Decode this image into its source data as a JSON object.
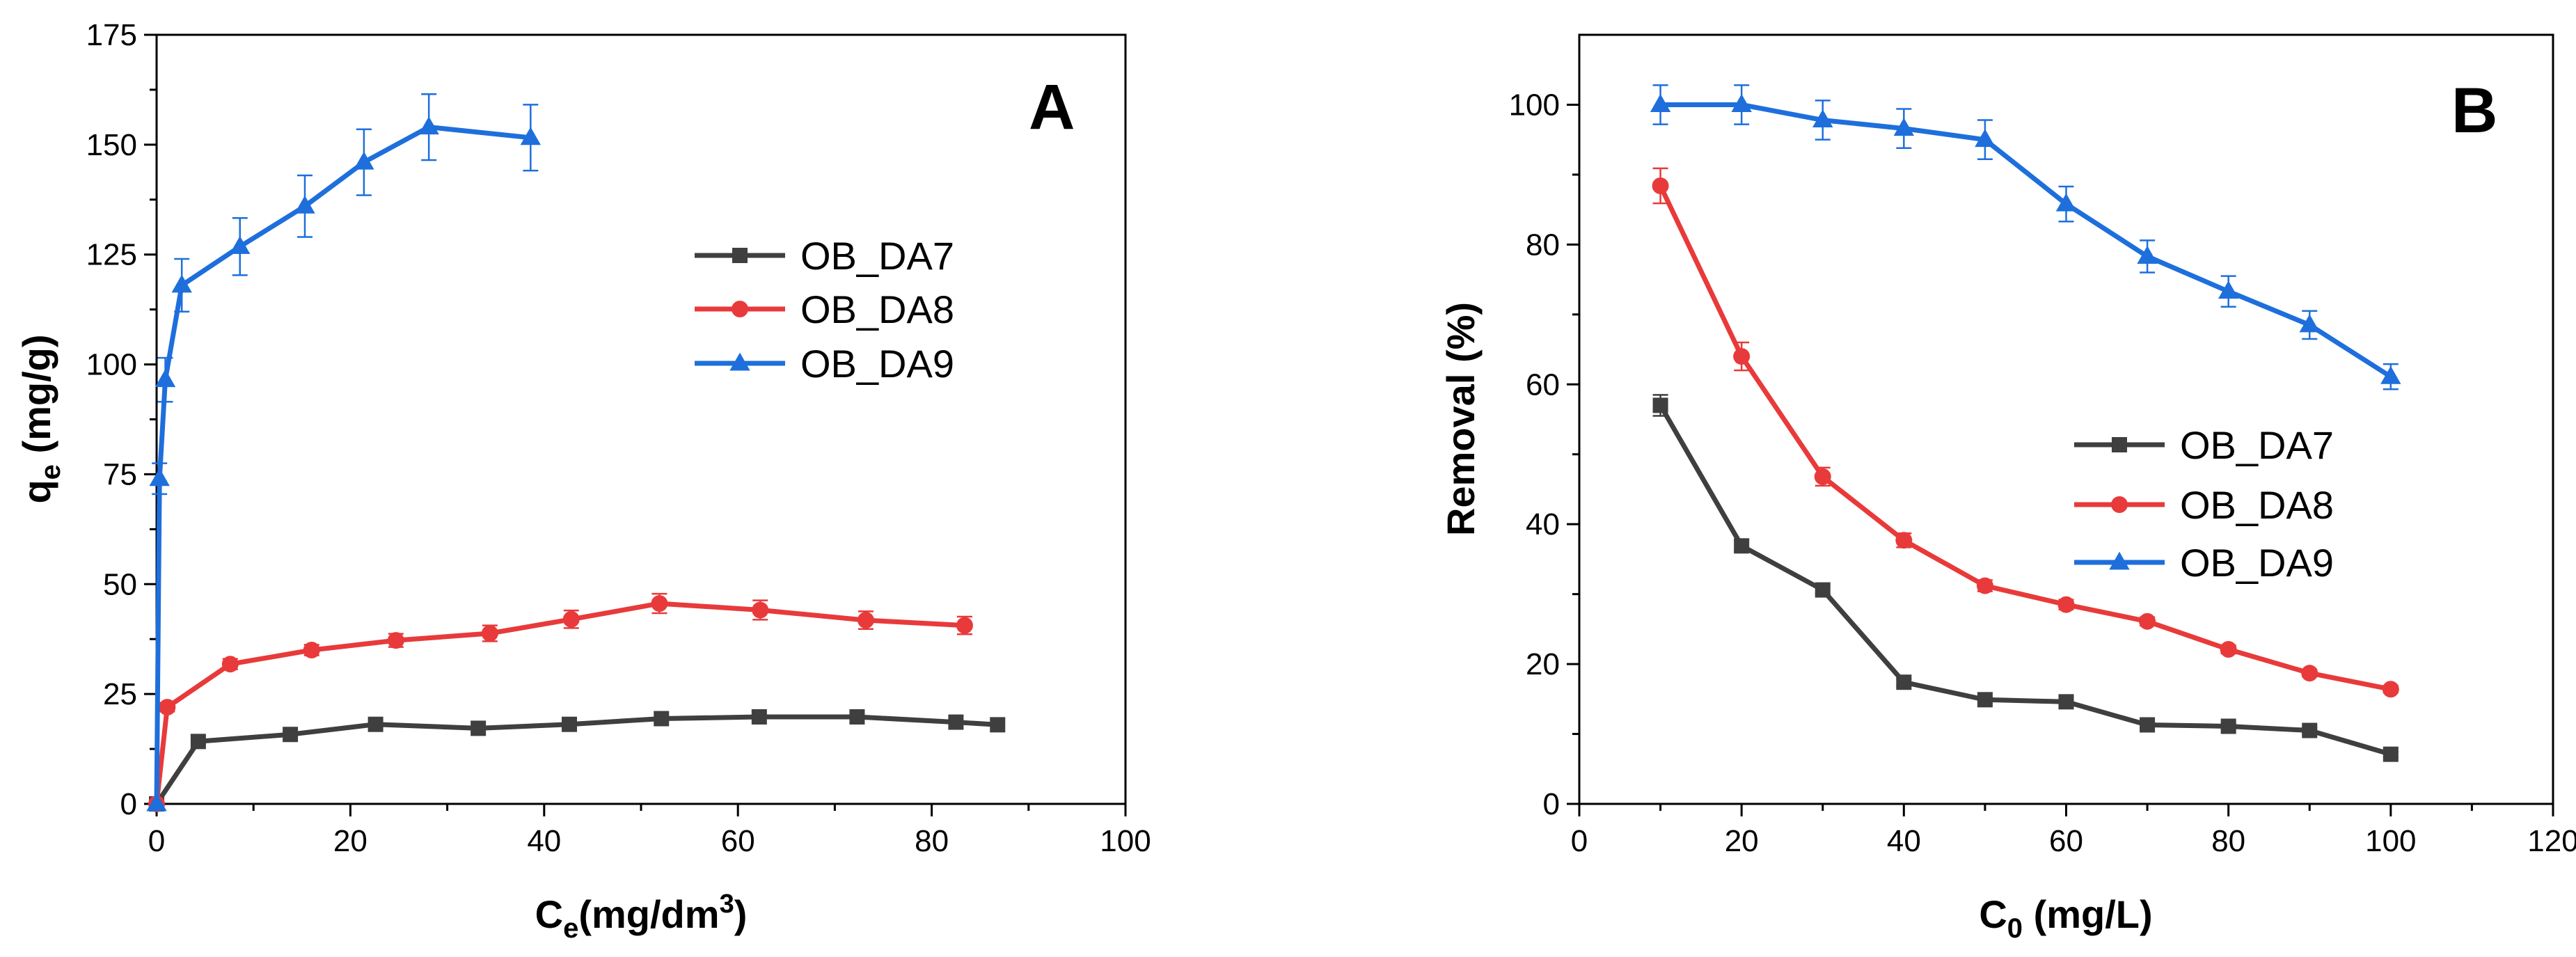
{
  "chart_data": [
    {
      "type": "line",
      "panel_label": "A",
      "xlabel": {
        "base": "C",
        "sub": "e",
        "tail": "(mg/dm",
        "sup": "3",
        "close": ")"
      },
      "ylabel": {
        "base": "q",
        "sub": "e",
        "tail": " (mg/g)"
      },
      "xlim": [
        0,
        100
      ],
      "ylim": [
        0,
        175
      ],
      "xticks": [
        0,
        20,
        40,
        60,
        80,
        100
      ],
      "yticks": [
        0,
        25,
        50,
        75,
        100,
        125,
        150,
        175
      ],
      "xtick_labels": [
        "0",
        "20",
        "40",
        "60",
        "80",
        "100"
      ],
      "ytick_labels": [
        "0",
        "25",
        "50",
        "75",
        "100",
        "125",
        "150",
        "175"
      ],
      "legend_position": "center-right",
      "grid": false,
      "series": [
        {
          "name": "OB_DA7",
          "color": "#3f3f3f",
          "marker": "square",
          "x": [
            0,
            4.3,
            13.8,
            22.6,
            33.2,
            42.6,
            52.1,
            62.2,
            72.3,
            82.5,
            86.8
          ],
          "y": [
            0,
            14.2,
            15.8,
            18.1,
            17.2,
            18.1,
            19.4,
            19.8,
            19.8,
            18.6,
            18.0
          ],
          "err": [
            0,
            0,
            0,
            0,
            0,
            0,
            0,
            0,
            0,
            0,
            0
          ]
        },
        {
          "name": "OB_DA8",
          "color": "#e83a3a",
          "marker": "circle",
          "x": [
            0,
            1.1,
            7.6,
            16.0,
            24.7,
            34.4,
            42.8,
            51.9,
            62.3,
            73.2,
            83.4
          ],
          "y": [
            0,
            22.0,
            31.8,
            35.0,
            37.2,
            38.8,
            42.0,
            45.6,
            44.1,
            41.8,
            40.6
          ],
          "err": [
            0,
            1.0,
            1.2,
            1.2,
            1.5,
            1.8,
            2.0,
            2.2,
            2.2,
            2.0,
            2.0
          ]
        },
        {
          "name": "OB_DA9",
          "color": "#1e6fdc",
          "marker": "triangle",
          "x": [
            0,
            0.3,
            0.9,
            2.6,
            8.6,
            15.3,
            21.4,
            28.1,
            38.6
          ],
          "y": [
            0,
            74.0,
            96.5,
            118.0,
            126.8,
            136.0,
            146.0,
            154.0,
            151.6
          ],
          "err": [
            0,
            3.5,
            5.0,
            6.0,
            6.5,
            7.0,
            7.5,
            7.5,
            7.5
          ]
        }
      ]
    },
    {
      "type": "line",
      "panel_label": "B",
      "xlabel": {
        "base": "C",
        "sub": "0",
        "tail": " (mg/L)",
        "sup": "",
        "close": ""
      },
      "ylabel": {
        "base": "Removal (%)",
        "sub": "",
        "tail": ""
      },
      "xlim": [
        0,
        120
      ],
      "ylim": [
        0,
        110
      ],
      "xticks": [
        0,
        20,
        40,
        60,
        80,
        100,
        120
      ],
      "yticks": [
        0,
        20,
        40,
        60,
        80,
        100
      ],
      "xtick_labels": [
        "0",
        "20",
        "40",
        "60",
        "80",
        "100",
        "120"
      ],
      "ytick_labels": [
        "0",
        "20",
        "40",
        "60",
        "80",
        "100"
      ],
      "legend_position": "center-right",
      "grid": false,
      "series": [
        {
          "name": "OB_DA7",
          "color": "#3f3f3f",
          "marker": "square",
          "x": [
            10,
            20,
            30,
            40,
            50,
            60,
            70,
            80,
            90,
            100
          ],
          "y": [
            57.0,
            36.9,
            30.6,
            17.4,
            14.9,
            14.6,
            11.3,
            11.1,
            10.5,
            7.1
          ],
          "err": [
            1.5,
            0.8,
            0.6,
            0.5,
            0.4,
            0.4,
            0.4,
            0.4,
            0.4,
            0.4
          ]
        },
        {
          "name": "OB_DA8",
          "color": "#e83a3a",
          "marker": "circle",
          "x": [
            10,
            20,
            30,
            40,
            50,
            60,
            70,
            80,
            90,
            100
          ],
          "y": [
            88.4,
            64.0,
            46.8,
            37.7,
            31.2,
            28.5,
            26.1,
            22.1,
            18.7,
            16.4
          ],
          "err": [
            2.5,
            2.0,
            1.3,
            1.0,
            0.8,
            0.7,
            0.6,
            0.6,
            0.5,
            0.5
          ]
        },
        {
          "name": "OB_DA9",
          "color": "#1e6fdc",
          "marker": "triangle",
          "x": [
            10,
            20,
            30,
            40,
            50,
            60,
            70,
            80,
            90,
            100
          ],
          "y": [
            100.0,
            100.0,
            97.8,
            96.6,
            95.0,
            85.8,
            78.3,
            73.3,
            68.5,
            61.1
          ],
          "err": [
            2.8,
            2.8,
            2.8,
            2.8,
            2.8,
            2.5,
            2.3,
            2.2,
            2.0,
            1.8
          ]
        }
      ]
    }
  ]
}
